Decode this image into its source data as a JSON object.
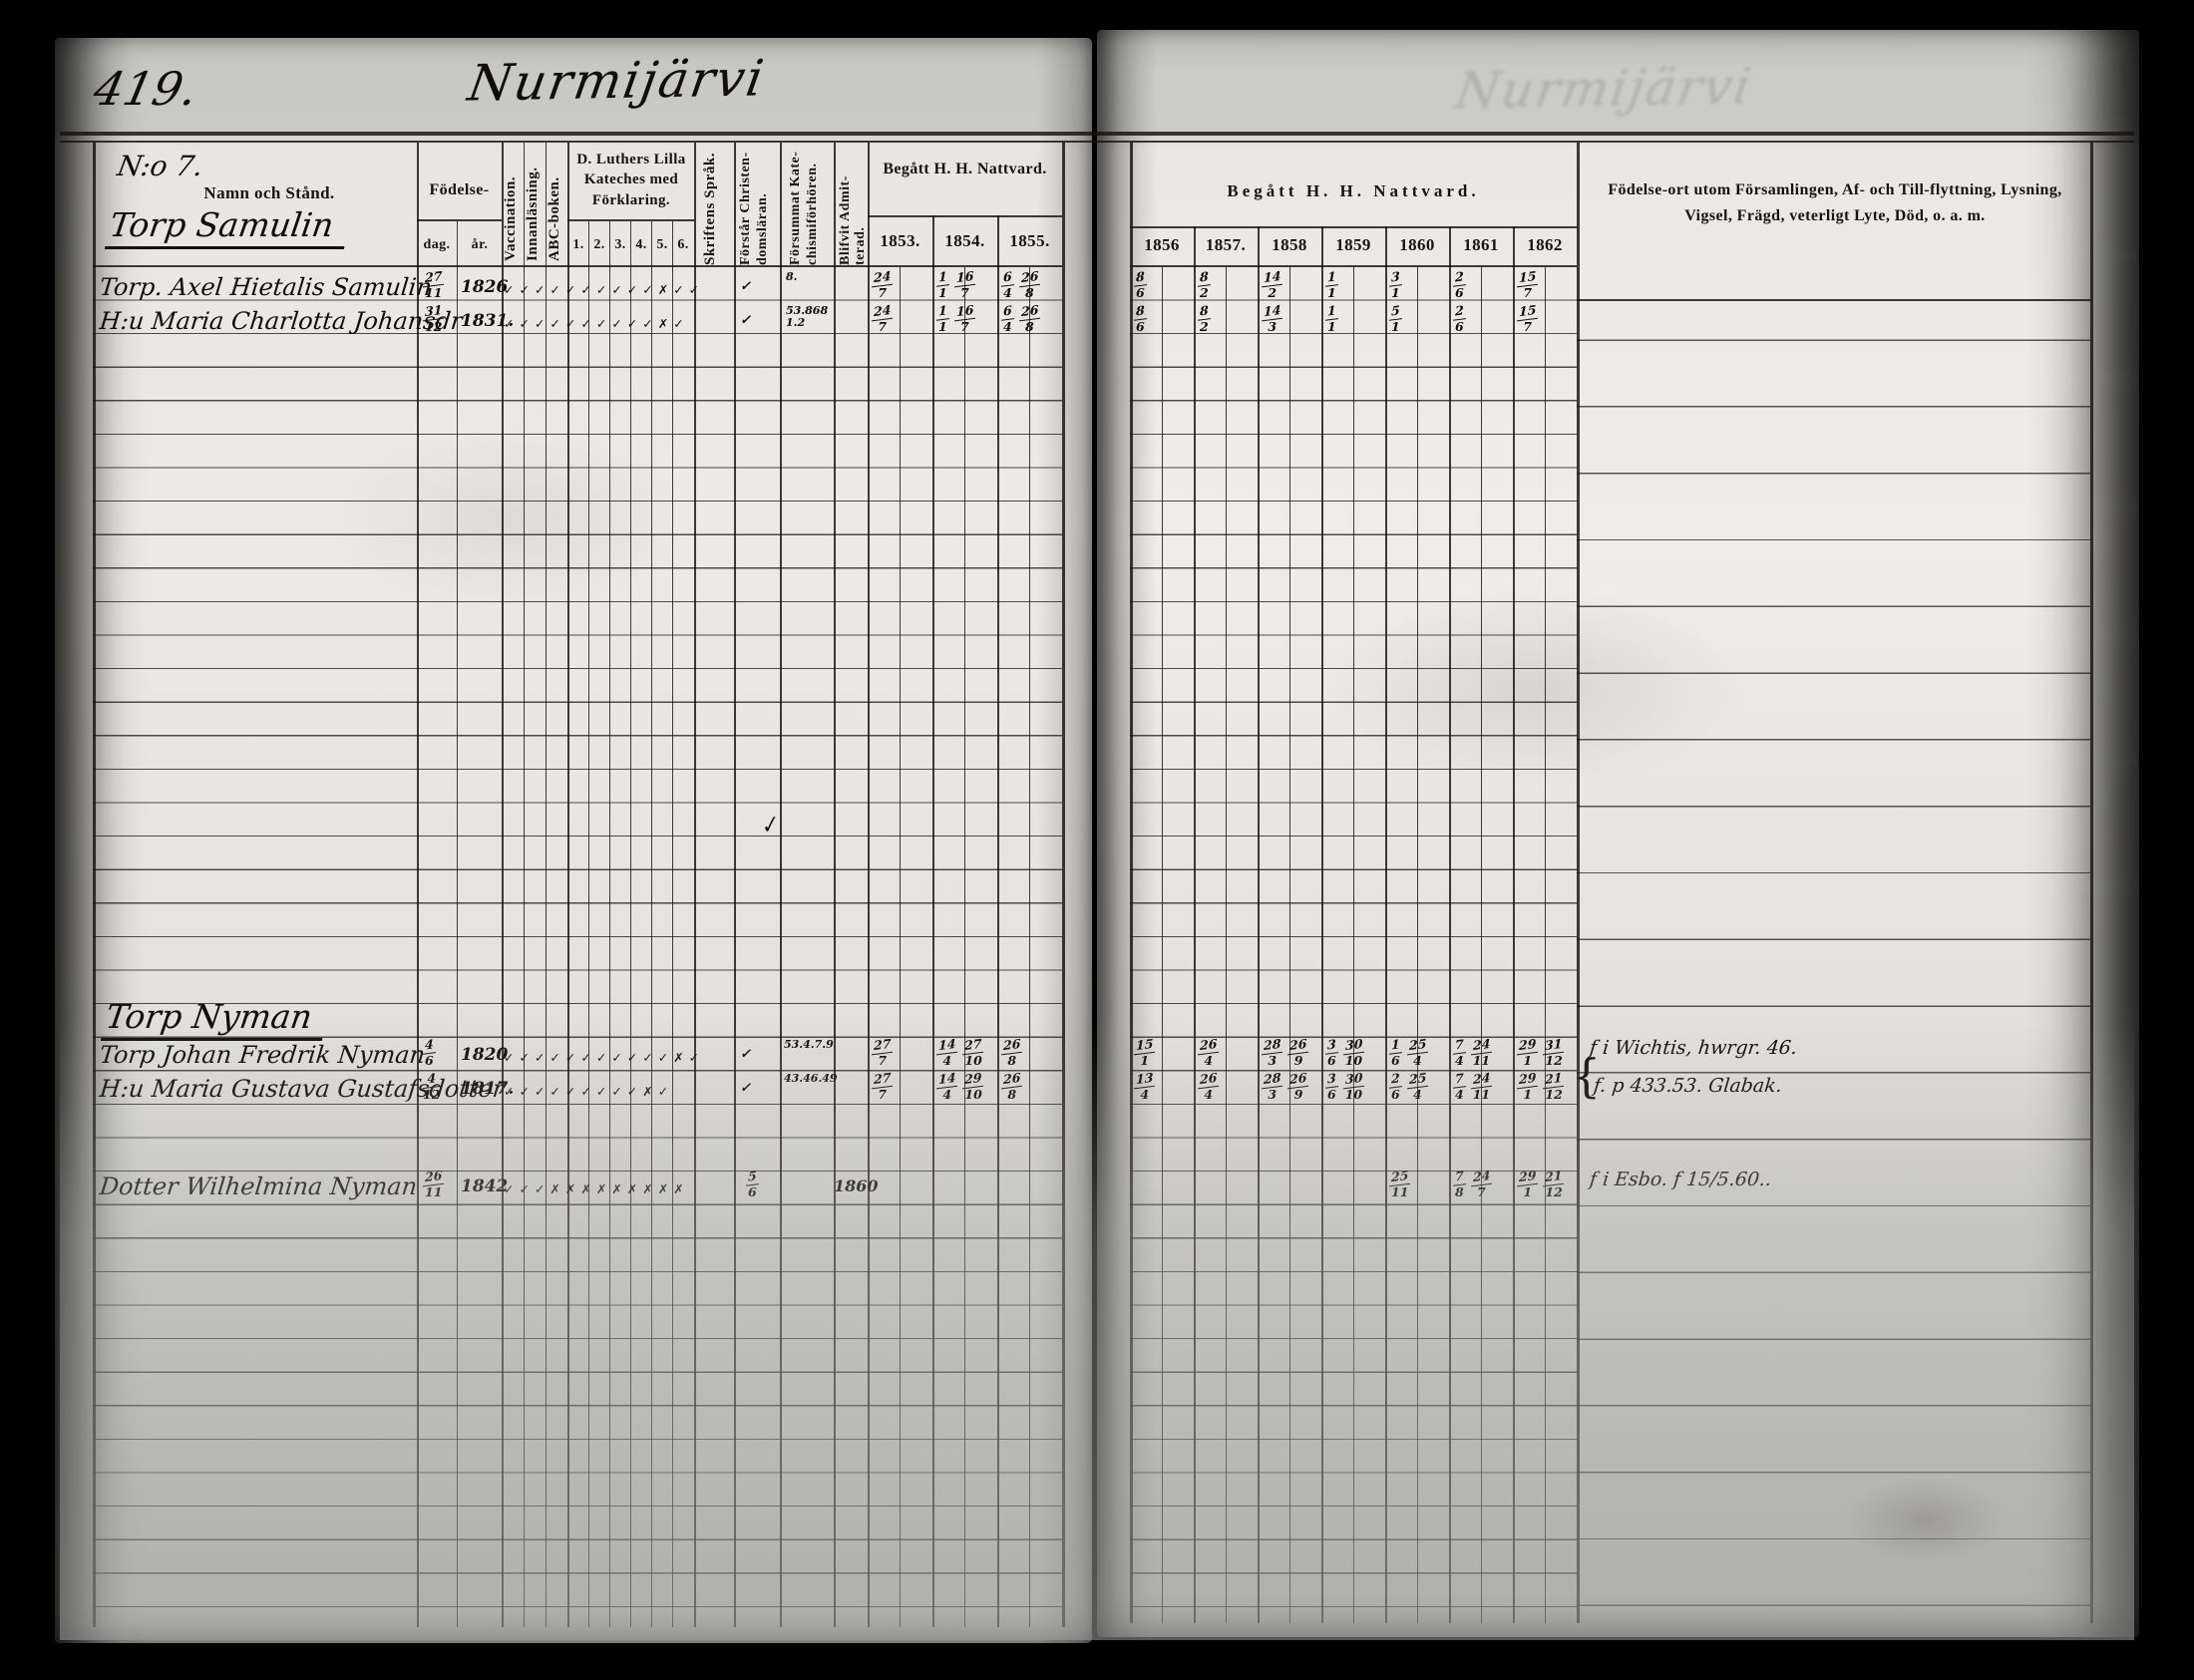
{
  "page": {
    "number": "419.",
    "title": "Nurmijärvi"
  },
  "left_header": {
    "no_label": "N:o 7.",
    "name_col": "Namn och Stånd.",
    "birth": {
      "group": "Födelse-",
      "day": "dag.",
      "year": "år."
    },
    "vaccination": "Vaccination.",
    "reading": "Innanläsning.",
    "abc": "ABC-boken.",
    "catechism_title": "D. Luthers Lilla Kateches med Förklaring.",
    "catechism_cols": [
      "1.",
      "2.",
      "3.",
      "4.",
      "5.",
      "6."
    ],
    "script_lang": "Skriftens Språk.",
    "understands": [
      "Förstår Christen-",
      "domsläran."
    ],
    "missed": [
      "Försummat Kate-",
      "chismiförhören."
    ],
    "admitted": [
      "Blifvit Admit-",
      "terad."
    ],
    "communion": "Begått H. H. Nattvard.",
    "years": [
      "1853.",
      "1854.",
      "1855."
    ]
  },
  "right_header": {
    "communion": "Begått  H.  H.  Nattvard.",
    "years": [
      "1856",
      "1857.",
      "1858",
      "1859",
      "1860",
      "1861",
      "1862"
    ],
    "remarks": "Födelse-ort utom Församlingen, Af- och Till-flyttning, Lysning, Vigsel, Frägd, veterligt Lyte, Död, o. a. m."
  },
  "sections": {
    "samulin": {
      "heading": "Torp Samulin",
      "rows": [
        {
          "name": "Torp. Axel Hietalis Samulin",
          "birth_day": "27/11",
          "birth_year": "1826",
          "marks": "✓✓✓✓✓✓✓✓✓✓✗✓✓",
          "understands": "✓",
          "missed": "8.",
          "admitted": "",
          "y1853": "24/7",
          "y1854": "1/1 16/7",
          "y1855": "6/4 26/8",
          "y1856": "8/6",
          "y1857": "8/2",
          "y1858": "14/2",
          "y1859": "1/1",
          "y1860": "3/1",
          "y1861": "2/6",
          "y1862": "15/7",
          "remark": ""
        },
        {
          "name": "H:u Maria Charlotta Johansdr",
          "birth_day": "31/12",
          "birth_year": "1831.",
          "marks": "✓✓✓✓✓✓✓✓✓✓✗✓",
          "understands": "✓",
          "missed": "53.868 1.2",
          "admitted": "",
          "y1853": "24/7",
          "y1854": "1/1 16/7",
          "y1855": "6/4 26/8",
          "y1856": "8/6",
          "y1857": "8/2",
          "y1858": "14/3",
          "y1859": "1/1",
          "y1860": "5/1",
          "y1861": "2/6",
          "y1862": "15/7",
          "remark": ""
        }
      ]
    },
    "nyman": {
      "heading": "Torp Nyman",
      "rows": [
        {
          "name": "Torp Johan Fredrik Nyman",
          "birth_day": "4/6",
          "birth_year": "1820",
          "marks": "✓✓✓✓✓✓✓✓✓✓✓✗✓",
          "understands": "✓",
          "missed": "53.4.7.9",
          "admitted": "",
          "y1853": "27/7",
          "y1854": "14/4 27/10",
          "y1855": "26/8",
          "y1856": "15/1",
          "y1857": "26/4",
          "y1858": "28/3 26/9",
          "y1859": "3/6 30/10",
          "y1860": "1/6 25/4",
          "y1861": "7/4 24/11",
          "y1862": "29/1 31/12",
          "remark": "f i Wichtis, hwrgr. 46."
        },
        {
          "name": "H:u Maria Gustava Gustafsdotter",
          "birth_day": "4/12",
          "birth_year": "1817.",
          "marks": "✓✓✓✓✓✓✓✓✓✗✓",
          "understands": "✓",
          "missed": "43.46.49",
          "admitted": "",
          "y1853": "27/7",
          "y1854": "14/4 29/10",
          "y1855": "26/8",
          "y1856": "13/4",
          "y1857": "26/4",
          "y1858": "28/3 26/9",
          "y1859": "3/6 30/10",
          "y1860": "2/6 25/4",
          "y1861": "7/4 24/11",
          "y1862": "29/1 21/12",
          "remark": "f. p 433.53. Glabak.",
          "brace": "{"
        },
        {
          "name": "Dotter Wilhelmina Nyman",
          "birth_day": "26/11",
          "birth_year": "1842",
          "marks": "✓✓✓✗✗✗✗✗✗✗✗✗",
          "understands": "5/6",
          "missed": "",
          "admitted": "1860",
          "y1853": "",
          "y1854": "",
          "y1855": "",
          "y1856": "",
          "y1857": "",
          "y1858": "",
          "y1859": "",
          "y1860": "25/11",
          "y1861": "7/8 24/7",
          "y1862": "29/1 21/12",
          "remark": "f i Esbo. f 15/5.60.."
        }
      ]
    }
  }
}
